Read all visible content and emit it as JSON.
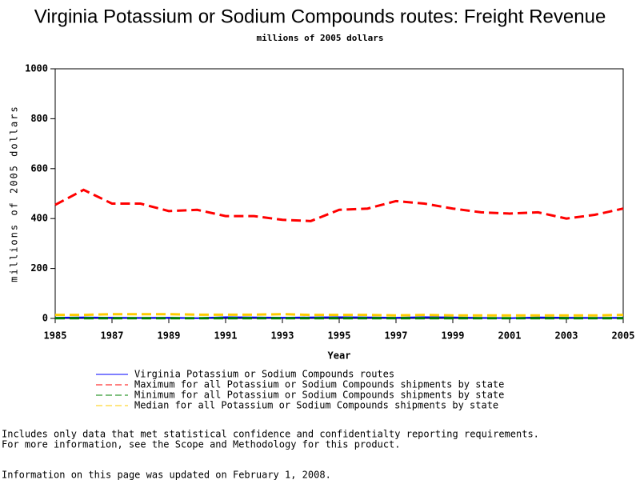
{
  "chart_data": {
    "type": "line",
    "title": "Virginia Potassium or Sodium Compounds routes: Freight Revenue",
    "subtitle": "millions of 2005 dollars",
    "xlabel": "Year",
    "ylabel": "millions of 2005 dollars",
    "x": [
      1985,
      1986,
      1987,
      1988,
      1989,
      1990,
      1991,
      1992,
      1993,
      1994,
      1995,
      1996,
      1997,
      1998,
      1999,
      2000,
      2001,
      2002,
      2003,
      2004,
      2005
    ],
    "xlim": [
      1985,
      2005
    ],
    "xticks": [
      1985,
      1987,
      1989,
      1991,
      1993,
      1995,
      1997,
      1999,
      2001,
      2003,
      2005
    ],
    "ylim": [
      0,
      1000
    ],
    "yticks": [
      0,
      200,
      400,
      600,
      800,
      1000
    ],
    "series": [
      {
        "name": "Virginia Potassium or Sodium Compounds routes",
        "color": "#0000ff",
        "dashed": false,
        "values": [
          3,
          4,
          3,
          2,
          3,
          1,
          5,
          4,
          3,
          4,
          5,
          4,
          3,
          5,
          4,
          2,
          1,
          4,
          3,
          2,
          3
        ]
      },
      {
        "name": "Maximum for all Potassium or Sodium Compounds shipments by state",
        "color": "#ff0000",
        "dashed": true,
        "values": [
          455,
          515,
          460,
          460,
          430,
          435,
          410,
          410,
          395,
          390,
          435,
          440,
          470,
          460,
          440,
          425,
          420,
          425,
          400,
          415,
          440
        ]
      },
      {
        "name": "Minimum for all Potassium or Sodium Compounds shipments by state",
        "color": "#008000",
        "dashed": true,
        "values": [
          1,
          1,
          1,
          1,
          1,
          1,
          1,
          1,
          1,
          1,
          1,
          1,
          1,
          1,
          1,
          1,
          1,
          1,
          1,
          1,
          1
        ]
      },
      {
        "name": "Median for all Potassium or Sodium Compounds shipments by state",
        "color": "#ffcc00",
        "dashed": true,
        "values": [
          14,
          14,
          17,
          17,
          17,
          15,
          15,
          15,
          17,
          14,
          14,
          14,
          12,
          14,
          12,
          12,
          12,
          12,
          12,
          12,
          14
        ]
      }
    ]
  },
  "notes": [
    "Includes only data that met statistical confidence and confidentialty reporting requirements.",
    "For more information, see the Scope and Methodology for this product.",
    "Information on this page was updated on February 1, 2008."
  ]
}
